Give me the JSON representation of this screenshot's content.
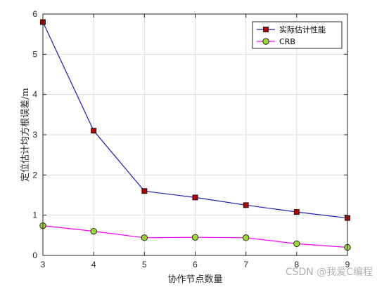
{
  "chart_data": {
    "type": "line",
    "xlabel": "协作节点数量",
    "ylabel": "定位估计均方根误差/m",
    "x": [
      3,
      4,
      5,
      6,
      7,
      8,
      9
    ],
    "xlim": [
      3,
      9
    ],
    "ylim": [
      0,
      6
    ],
    "xticks": [
      "3",
      "4",
      "5",
      "6",
      "7",
      "8",
      "9"
    ],
    "yticks": [
      "0",
      "1",
      "2",
      "3",
      "4",
      "5",
      "6"
    ],
    "grid": true,
    "legend_position": "top-right",
    "series": [
      {
        "name": "实际估计性能",
        "values": [
          5.8,
          3.1,
          1.6,
          1.44,
          1.25,
          1.08,
          0.93
        ],
        "line_color": "#1b1bb3",
        "marker": "square",
        "marker_color": "#b50000"
      },
      {
        "name": "CRB",
        "values": [
          0.74,
          0.6,
          0.44,
          0.45,
          0.44,
          0.29,
          0.2
        ],
        "line_color": "#ff00ff",
        "marker": "circle",
        "marker_color": "#99dd33"
      }
    ]
  },
  "watermark": "CSDN @我爱C编程"
}
